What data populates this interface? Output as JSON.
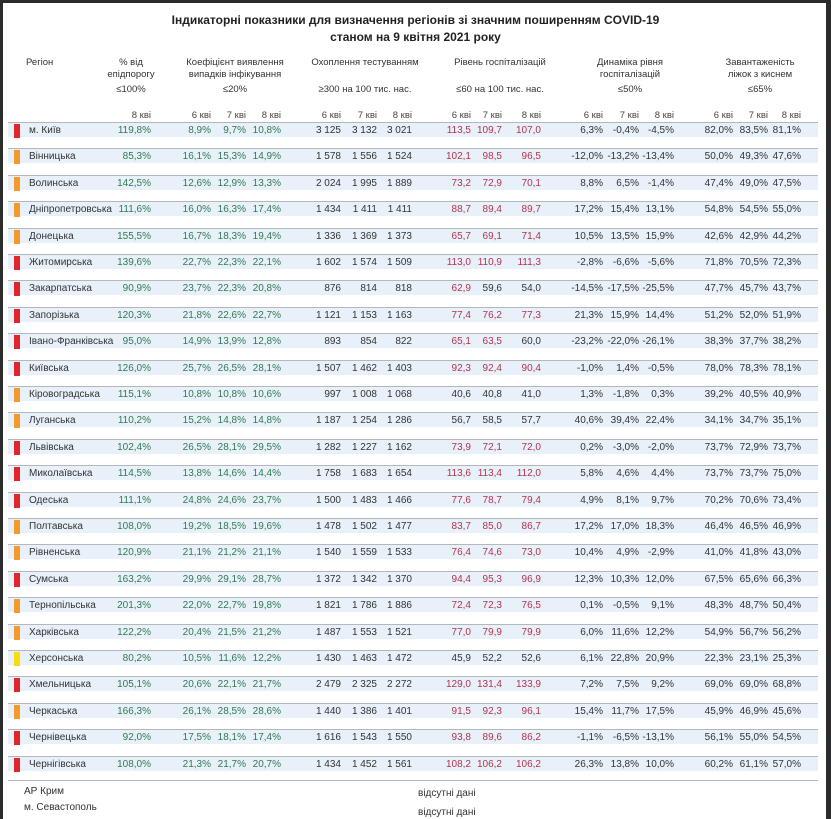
{
  "title": {
    "line1": "Індикаторні показники для визначення регіонів зі значним поширенням COVID-19",
    "line2": "станом на 9 квітня 2021 року"
  },
  "columns": {
    "region": "Регіон",
    "epid": {
      "label": "% від епідпорогу",
      "threshold": "≤100%"
    },
    "coef": {
      "label": "Коефіцієнт виявлення випадків інфікування",
      "threshold": "≤20%"
    },
    "testing": {
      "label": "Охоплення тестуванням",
      "threshold": "≥300 на 100 тис. нас."
    },
    "hosp": {
      "label": "Рівень госпіталізацій",
      "threshold": "≤60 на 100 тис. нас."
    },
    "dyn": {
      "label": "Динаміка рівня госпіталізацій",
      "threshold": "≤50%"
    },
    "beds": {
      "label": "Завантаженість ліжок з киснем",
      "threshold": "≤65%"
    }
  },
  "quarters": {
    "q6": "6 кві",
    "q7": "7 кві",
    "q8": "8 кві"
  },
  "colors": {
    "red": "#e0262b",
    "orange": "#f39a2b",
    "yellow": "#f7dc12",
    "green_text": "#2f7a50",
    "red_text": "#b3334d",
    "dark_text": "#333333"
  },
  "rows": [
    {
      "region": "м. Київ",
      "status": "red",
      "epid": "119,8%",
      "coef": [
        "8,9%",
        "9,7%",
        "10,8%"
      ],
      "testing": [
        "3 125",
        "3 132",
        "3 021"
      ],
      "hosp": [
        "113,5",
        "109,7",
        "107,0"
      ],
      "dyn": [
        "6,3%",
        "-0,4%",
        "-4,5%"
      ],
      "beds": [
        "82,0%",
        "83,5%",
        "81,1%"
      ]
    },
    {
      "region": "Вінницька",
      "status": "orange",
      "epid": "85,3%",
      "coef": [
        "16,1%",
        "15,3%",
        "14,9%"
      ],
      "testing": [
        "1 578",
        "1 556",
        "1 524"
      ],
      "hosp": [
        "102,1",
        "98,5",
        "96,5"
      ],
      "dyn": [
        "-12,0%",
        "-13,2%",
        "-13,4%"
      ],
      "beds": [
        "50,0%",
        "49,3%",
        "47,6%"
      ]
    },
    {
      "region": "Волинська",
      "status": "orange",
      "epid": "142,5%",
      "coef": [
        "12,6%",
        "12,9%",
        "13,3%"
      ],
      "testing": [
        "2 024",
        "1 995",
        "1 889"
      ],
      "hosp": [
        "73,2",
        "72,9",
        "70,1"
      ],
      "dyn": [
        "8,8%",
        "6,5%",
        "-1,4%"
      ],
      "beds": [
        "47,4%",
        "49,0%",
        "47,5%"
      ]
    },
    {
      "region": "Дніпропетровська",
      "status": "orange",
      "epid": "111,6%",
      "coef": [
        "16,0%",
        "16,3%",
        "17,4%"
      ],
      "testing": [
        "1 434",
        "1 411",
        "1 411"
      ],
      "hosp": [
        "88,7",
        "89,4",
        "89,7"
      ],
      "dyn": [
        "17,2%",
        "15,4%",
        "13,1%"
      ],
      "beds": [
        "54,8%",
        "54,5%",
        "55,0%"
      ]
    },
    {
      "region": "Донецька",
      "status": "orange",
      "epid": "155,5%",
      "coef": [
        "16,7%",
        "18,3%",
        "19,4%"
      ],
      "testing": [
        "1 336",
        "1 369",
        "1 373"
      ],
      "hosp": [
        "65,7",
        "69,1",
        "71,4"
      ],
      "dyn": [
        "10,5%",
        "13,5%",
        "15,9%"
      ],
      "beds": [
        "42,6%",
        "42,9%",
        "44,2%"
      ]
    },
    {
      "region": "Житомирська",
      "status": "red",
      "epid": "139,6%",
      "coef": [
        "22,7%",
        "22,3%",
        "22,1%"
      ],
      "testing": [
        "1 602",
        "1 574",
        "1 509"
      ],
      "hosp": [
        "113,0",
        "110,9",
        "111,3"
      ],
      "dyn": [
        "-2,8%",
        "-6,6%",
        "-5,6%"
      ],
      "beds": [
        "71,8%",
        "70,5%",
        "72,3%"
      ]
    },
    {
      "region": "Закарпатська",
      "status": "red",
      "epid": "90,9%",
      "coef": [
        "23,7%",
        "22,3%",
        "20,8%"
      ],
      "testing": [
        "876",
        "814",
        "818"
      ],
      "hosp": [
        "62,9",
        "59,6",
        "54,0"
      ],
      "dyn": [
        "-14,5%",
        "-17,5%",
        "-25,5%"
      ],
      "beds": [
        "47,7%",
        "45,7%",
        "43,7%"
      ]
    },
    {
      "region": "Запорізька",
      "status": "red",
      "epid": "120,3%",
      "coef": [
        "21,8%",
        "22,6%",
        "22,7%"
      ],
      "testing": [
        "1 121",
        "1 153",
        "1 163"
      ],
      "hosp": [
        "77,4",
        "76,2",
        "77,3"
      ],
      "dyn": [
        "21,3%",
        "15,9%",
        "14,4%"
      ],
      "beds": [
        "51,2%",
        "52,0%",
        "51,9%"
      ]
    },
    {
      "region": "Івано-Франківська",
      "status": "red",
      "epid": "95,0%",
      "coef": [
        "14,9%",
        "13,9%",
        "12,8%"
      ],
      "testing": [
        "893",
        "854",
        "822"
      ],
      "hosp": [
        "65,1",
        "63,5",
        "60,0"
      ],
      "dyn": [
        "-23,2%",
        "-22,0%",
        "-26,1%"
      ],
      "beds": [
        "38,3%",
        "37,7%",
        "38,2%"
      ]
    },
    {
      "region": "Київська",
      "status": "red",
      "epid": "126,0%",
      "coef": [
        "25,7%",
        "26,5%",
        "28,1%"
      ],
      "testing": [
        "1 507",
        "1 462",
        "1 403"
      ],
      "hosp": [
        "92,3",
        "92,4",
        "90,4"
      ],
      "dyn": [
        "-1,0%",
        "1,4%",
        "-0,5%"
      ],
      "beds": [
        "78,0%",
        "78,3%",
        "78,1%"
      ]
    },
    {
      "region": "Кіровоградська",
      "status": "orange",
      "epid": "115,1%",
      "coef": [
        "10,8%",
        "10,8%",
        "10,6%"
      ],
      "testing": [
        "997",
        "1 008",
        "1 068"
      ],
      "hosp": [
        "40,6",
        "40,8",
        "41,0"
      ],
      "dyn": [
        "1,3%",
        "-1,8%",
        "0,3%"
      ],
      "beds": [
        "39,2%",
        "40,5%",
        "40,9%"
      ]
    },
    {
      "region": "Луганська",
      "status": "orange",
      "epid": "110,2%",
      "coef": [
        "15,2%",
        "14,8%",
        "14,8%"
      ],
      "testing": [
        "1 187",
        "1 254",
        "1 286"
      ],
      "hosp": [
        "56,7",
        "58,5",
        "57,7"
      ],
      "dyn": [
        "40,6%",
        "39,4%",
        "22,4%"
      ],
      "beds": [
        "34,1%",
        "34,7%",
        "35,1%"
      ]
    },
    {
      "region": "Львівська",
      "status": "red",
      "epid": "102,4%",
      "coef": [
        "26,5%",
        "28,1%",
        "29,5%"
      ],
      "testing": [
        "1 282",
        "1 227",
        "1 162"
      ],
      "hosp": [
        "73,9",
        "72,1",
        "72,0"
      ],
      "dyn": [
        "0,2%",
        "-3,0%",
        "-2,0%"
      ],
      "beds": [
        "73,7%",
        "72,9%",
        "73,7%"
      ]
    },
    {
      "region": "Миколаївська",
      "status": "red",
      "epid": "114,5%",
      "coef": [
        "13,8%",
        "14,6%",
        "14,4%"
      ],
      "testing": [
        "1 758",
        "1 683",
        "1 654"
      ],
      "hosp": [
        "113,6",
        "113,4",
        "112,0"
      ],
      "dyn": [
        "5,8%",
        "4,6%",
        "4,4%"
      ],
      "beds": [
        "73,7%",
        "73,7%",
        "75,0%"
      ]
    },
    {
      "region": "Одеська",
      "status": "red",
      "epid": "111,1%",
      "coef": [
        "24,8%",
        "24,6%",
        "23,7%"
      ],
      "testing": [
        "1 500",
        "1 483",
        "1 466"
      ],
      "hosp": [
        "77,6",
        "78,7",
        "79,4"
      ],
      "dyn": [
        "4,9%",
        "8,1%",
        "9,7%"
      ],
      "beds": [
        "70,2%",
        "70,6%",
        "73,4%"
      ]
    },
    {
      "region": "Полтавська",
      "status": "orange",
      "epid": "108,0%",
      "coef": [
        "19,2%",
        "18,5%",
        "19,6%"
      ],
      "testing": [
        "1 478",
        "1 502",
        "1 477"
      ],
      "hosp": [
        "83,7",
        "85,0",
        "86,7"
      ],
      "dyn": [
        "17,2%",
        "17,0%",
        "18,3%"
      ],
      "beds": [
        "46,4%",
        "46,5%",
        "46,9%"
      ]
    },
    {
      "region": "Рівненська",
      "status": "orange",
      "epid": "120,9%",
      "coef": [
        "21,1%",
        "21,2%",
        "21,1%"
      ],
      "testing": [
        "1 540",
        "1 559",
        "1 533"
      ],
      "hosp": [
        "76,4",
        "74,6",
        "73,0"
      ],
      "dyn": [
        "10,4%",
        "4,9%",
        "-2,9%"
      ],
      "beds": [
        "41,0%",
        "41,8%",
        "43,0%"
      ]
    },
    {
      "region": "Сумська",
      "status": "red",
      "epid": "163,2%",
      "coef": [
        "29,9%",
        "29,1%",
        "28,7%"
      ],
      "testing": [
        "1 372",
        "1 342",
        "1 370"
      ],
      "hosp": [
        "94,4",
        "95,3",
        "96,9"
      ],
      "dyn": [
        "12,3%",
        "10,3%",
        "12,0%"
      ],
      "beds": [
        "67,5%",
        "65,6%",
        "66,3%"
      ]
    },
    {
      "region": "Тернопільська",
      "status": "orange",
      "epid": "201,3%",
      "coef": [
        "22,0%",
        "22,7%",
        "19,8%"
      ],
      "testing": [
        "1 821",
        "1 786",
        "1 886"
      ],
      "hosp": [
        "72,4",
        "72,3",
        "76,5"
      ],
      "dyn": [
        "0,1%",
        "-0,5%",
        "9,1%"
      ],
      "beds": [
        "48,3%",
        "48,7%",
        "50,4%"
      ]
    },
    {
      "region": "Харківська",
      "status": "orange",
      "epid": "122,2%",
      "coef": [
        "20,4%",
        "21,5%",
        "21,2%"
      ],
      "testing": [
        "1 487",
        "1 553",
        "1 521"
      ],
      "hosp": [
        "77,0",
        "79,9",
        "79,9"
      ],
      "dyn": [
        "6,0%",
        "11,6%",
        "12,2%"
      ],
      "beds": [
        "54,9%",
        "56,7%",
        "56,2%"
      ]
    },
    {
      "region": "Херсонська",
      "status": "yellow",
      "epid": "80,2%",
      "coef": [
        "10,5%",
        "11,6%",
        "12,2%"
      ],
      "testing": [
        "1 430",
        "1 463",
        "1 472"
      ],
      "hosp": [
        "45,9",
        "52,2",
        "52,6"
      ],
      "dyn": [
        "6,1%",
        "22,8%",
        "20,9%"
      ],
      "beds": [
        "22,3%",
        "23,1%",
        "25,3%"
      ]
    },
    {
      "region": "Хмельницька",
      "status": "red",
      "epid": "105,1%",
      "coef": [
        "20,6%",
        "22,1%",
        "21,7%"
      ],
      "testing": [
        "2 479",
        "2 325",
        "2 272"
      ],
      "hosp": [
        "129,0",
        "131,4",
        "133,9"
      ],
      "dyn": [
        "7,2%",
        "7,5%",
        "9,2%"
      ],
      "beds": [
        "69,0%",
        "69,0%",
        "68,8%"
      ]
    },
    {
      "region": "Черкаська",
      "status": "orange",
      "epid": "166,3%",
      "coef": [
        "26,1%",
        "28,5%",
        "28,6%"
      ],
      "testing": [
        "1 440",
        "1 386",
        "1 401"
      ],
      "hosp": [
        "91,5",
        "92,3",
        "96,1"
      ],
      "dyn": [
        "15,4%",
        "11,7%",
        "17,5%"
      ],
      "beds": [
        "45,9%",
        "46,9%",
        "45,6%"
      ]
    },
    {
      "region": "Чернівецька",
      "status": "red",
      "epid": "92,0%",
      "coef": [
        "17,5%",
        "18,1%",
        "17,4%"
      ],
      "testing": [
        "1 616",
        "1 543",
        "1 550"
      ],
      "hosp": [
        "93,8",
        "89,6",
        "86,2"
      ],
      "dyn": [
        "-1,1%",
        "-6,5%",
        "-13,1%"
      ],
      "beds": [
        "56,1%",
        "55,0%",
        "54,5%"
      ]
    },
    {
      "region": "Чернігівська",
      "status": "red",
      "epid": "108,0%",
      "coef": [
        "21,3%",
        "21,7%",
        "20,7%"
      ],
      "testing": [
        "1 434",
        "1 452",
        "1 561"
      ],
      "hosp": [
        "108,2",
        "106,2",
        "106,2"
      ],
      "dyn": [
        "26,3%",
        "13,8%",
        "10,0%"
      ],
      "beds": [
        "60,2%",
        "61,1%",
        "57,0%"
      ]
    }
  ],
  "missing": [
    {
      "region": "АР Крим",
      "note": "відсутні дані"
    },
    {
      "region": "м. Севастополь",
      "note": "відсутні дані"
    }
  ]
}
